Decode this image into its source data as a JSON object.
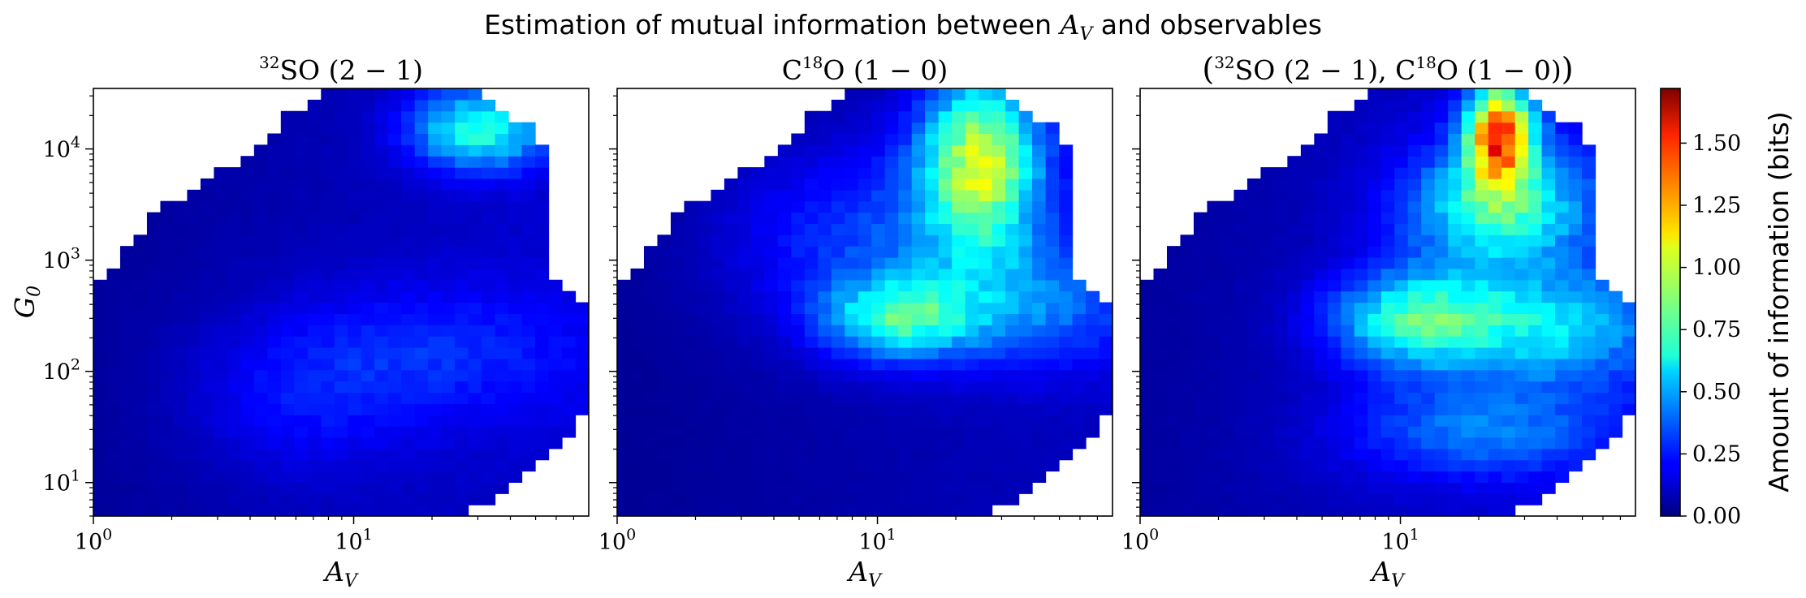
{
  "figure": {
    "suptitle_prefix": "Estimation of mutual information between ",
    "suptitle_var": "A",
    "suptitle_var_sub": "V",
    "suptitle_suffix": " and observables"
  },
  "panels": [
    {
      "title_pre": "",
      "title_sup": "32",
      "title_main": "SO (2 − 1)",
      "title_sup2": "",
      "title_main2": "",
      "title_post": ""
    },
    {
      "title_pre": "C",
      "title_sup": "18",
      "title_main": "O (1 − 0)",
      "title_sup2": "",
      "title_main2": "",
      "title_post": ""
    },
    {
      "title_pre": "(",
      "title_sup": "32",
      "title_main": "SO (2 − 1), C",
      "title_sup2": "18",
      "title_main2": "O (1 − 0)",
      "title_post": ")"
    }
  ],
  "axes": {
    "x_label_main": "A",
    "x_label_sub": "V",
    "y_label_main": "G",
    "y_label_sub": "0",
    "x_tick_labels": [
      {
        "base": "10",
        "exp": "0"
      },
      {
        "base": "10",
        "exp": "1"
      }
    ],
    "y_tick_labels": [
      {
        "base": "10",
        "exp": "1"
      },
      {
        "base": "10",
        "exp": "2"
      },
      {
        "base": "10",
        "exp": "3"
      },
      {
        "base": "10",
        "exp": "4"
      }
    ]
  },
  "colorbar": {
    "label": "Amount of information (bits)",
    "tick_labels": [
      "0.00",
      "0.25",
      "0.50",
      "0.75",
      "1.00",
      "1.25",
      "1.50"
    ],
    "colormap": "jet"
  },
  "chart_data": {
    "type": "heatmap",
    "x_scale": "log",
    "y_scale": "log",
    "xlim": [
      1,
      80
    ],
    "ylim": [
      5,
      35000
    ],
    "clim": [
      0,
      1.72
    ],
    "grid": false,
    "colorbar_ticks": [
      0,
      0.25,
      0.5,
      0.75,
      1.0,
      1.25,
      1.5
    ],
    "x_ticks": [
      1,
      10
    ],
    "y_ticks": [
      10,
      100,
      1000,
      10000
    ],
    "grid_bins": {
      "nx": 37,
      "ny": 38
    },
    "domain_lower_boundary": [
      [
        1.0,
        500
      ],
      [
        1.2,
        900
      ],
      [
        1.4,
        1500
      ],
      [
        1.6,
        2200
      ],
      [
        1.9,
        3000
      ],
      [
        2.3,
        3800
      ],
      [
        2.7,
        5000
      ],
      [
        3.3,
        7000
      ],
      [
        4.0,
        10000
      ],
      [
        4.8,
        14000
      ],
      [
        5.5,
        20000
      ],
      [
        6.5,
        25000
      ],
      [
        7.5,
        32000
      ],
      [
        80,
        35000
      ]
    ],
    "domain_upper_right_boundary": [
      [
        28,
        35000
      ],
      [
        38,
        22000
      ],
      [
        50,
        14000
      ],
      [
        55,
        9000
      ],
      [
        55,
        3000
      ],
      [
        55,
        1800
      ],
      [
        58,
        700
      ],
      [
        72,
        450
      ],
      [
        80,
        300
      ]
    ],
    "domain_lower_right_boundary": [
      [
        80,
        45
      ],
      [
        70,
        30
      ],
      [
        60,
        20
      ],
      [
        48,
        13
      ],
      [
        40,
        9
      ],
      [
        33,
        7
      ],
      [
        28,
        6
      ],
      [
        24,
        5
      ]
    ],
    "series": [
      {
        "name": "³²SO (2 − 1)",
        "background_bits": 0.1,
        "blobs": [
          {
            "av": 30,
            "g0": 15000,
            "peak_bits": 0.6,
            "spread_decades": [
              0.18,
              0.25
            ]
          },
          {
            "av": 20,
            "g0": 150,
            "peak_bits": 0.17,
            "spread_decades": [
              0.45,
              0.45
            ]
          },
          {
            "av": 6,
            "g0": 50,
            "peak_bits": 0.12,
            "spread_decades": [
              0.3,
              0.5
            ]
          }
        ]
      },
      {
        "name": "C¹⁸O (1 − 0)",
        "background_bits": 0.08,
        "blobs": [
          {
            "av": 25,
            "g0": 8000,
            "peak_bits": 0.85,
            "spread_decades": [
              0.16,
              0.55
            ]
          },
          {
            "av": 12,
            "g0": 300,
            "peak_bits": 0.55,
            "spread_decades": [
              0.2,
              0.25
            ]
          },
          {
            "av": 40,
            "g0": 400,
            "peak_bits": 0.3,
            "spread_decades": [
              0.3,
              0.4
            ]
          },
          {
            "av": 10,
            "g0": 1500,
            "peak_bits": 0.25,
            "spread_decades": [
              0.4,
              0.6
            ]
          }
        ]
      },
      {
        "name": "(³²SO (2 − 1), C¹⁸O (1 − 0))",
        "background_bits": 0.12,
        "blobs": [
          {
            "av": 24,
            "g0": 14000,
            "peak_bits": 1.2,
            "spread_decades": [
              0.09,
              0.32
            ]
          },
          {
            "av": 24,
            "g0": 3000,
            "peak_bits": 0.6,
            "spread_decades": [
              0.25,
              0.4
            ]
          },
          {
            "av": 11,
            "g0": 300,
            "peak_bits": 0.55,
            "spread_decades": [
              0.22,
              0.3
            ]
          },
          {
            "av": 35,
            "g0": 250,
            "peak_bits": 0.45,
            "spread_decades": [
              0.32,
              0.35
            ]
          },
          {
            "av": 20,
            "g0": 30,
            "peak_bits": 0.3,
            "spread_decades": [
              0.35,
              0.3
            ]
          }
        ]
      }
    ]
  }
}
